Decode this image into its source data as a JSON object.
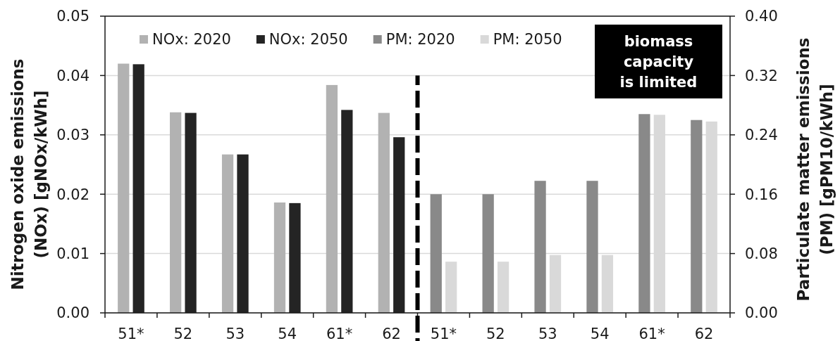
{
  "chart_data": {
    "type": "bar",
    "categories": [
      "51*",
      "52",
      "53",
      "54",
      "61*",
      "62",
      "51*",
      "52",
      "53",
      "54",
      "61*",
      "62"
    ],
    "series": [
      {
        "name": "NOx: 2020",
        "color": "#b2b2b2",
        "axis": "y",
        "values": [
          0.042,
          0.0338,
          0.0267,
          0.0186,
          0.0384,
          0.0337,
          null,
          null,
          null,
          null,
          null,
          null
        ]
      },
      {
        "name": "NOx: 2050",
        "color": "#242424",
        "axis": "y",
        "values": [
          0.0419,
          0.0337,
          0.0267,
          0.0185,
          0.0342,
          0.0296,
          null,
          null,
          null,
          null,
          null,
          null
        ]
      },
      {
        "name": "PM: 2020",
        "color": "#898989",
        "axis": "y2",
        "values": [
          null,
          null,
          null,
          null,
          null,
          null,
          0.16,
          0.16,
          0.178,
          0.178,
          0.268,
          0.26
        ]
      },
      {
        "name": "PM: 2050",
        "color": "#d9d9d9",
        "axis": "y2",
        "values": [
          null,
          null,
          null,
          null,
          null,
          null,
          0.069,
          0.069,
          0.078,
          0.078,
          0.267,
          0.258
        ]
      }
    ],
    "ylim": [
      0,
      0.05
    ],
    "yticks": [
      {
        "value": 0,
        "label": "0.00"
      },
      0.01,
      0.02,
      0.03,
      0.04,
      0.05
    ],
    "y2lim": [
      0,
      0.4
    ],
    "y2ticks": [
      {
        "value": 0,
        "label": "0.00"
      },
      0.08,
      0.16,
      0.24,
      0.32,
      {
        "value": 0.4,
        "label": "0.40"
      }
    ],
    "ylabel": "Nitrogen oxide emissions\n(NOx) [gNOx/kWh]",
    "y2label": "Particulate matter emissions\n(PM) [gPM10/kWh]",
    "annotations": [
      "biomass\ncapacity\nis limited"
    ],
    "grid": "y",
    "legend": "top"
  }
}
